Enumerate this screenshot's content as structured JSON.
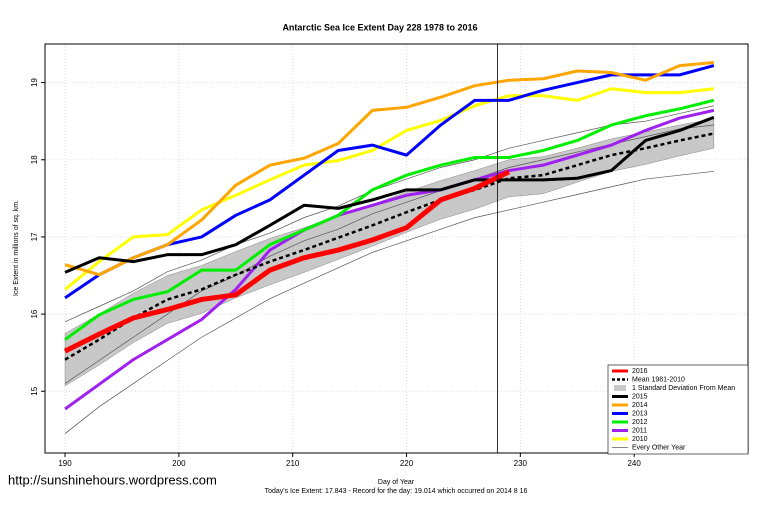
{
  "chart_data": {
    "type": "line",
    "title": "Antarctic Sea Ice Extent Day 228 1978 to 2016",
    "x_label": "Day of Year",
    "y_label": "Ice Extent in millions of sq. km.",
    "footer": "Today's Ice Extent: 17.843  - Record for the day: 19.014 which occurred on 2014 8 16",
    "watermark": "http://sunshinehours.wordpress.com",
    "x": [
      190,
      193,
      196,
      199,
      202,
      205,
      208,
      211,
      214,
      217,
      220,
      223,
      226,
      229,
      232,
      235,
      238,
      241,
      244,
      247
    ],
    "xlim": [
      188.24,
      250
    ],
    "xticks": [
      190,
      200,
      210,
      220,
      230,
      240
    ],
    "ylim": [
      14.2,
      19.5
    ],
    "yticks": [
      15,
      16,
      17,
      18,
      19
    ],
    "grid": true,
    "legend": "bottom-right",
    "vline": 228,
    "series": [
      {
        "name": "2016",
        "color": "#ff0000",
        "width": 5,
        "values": [
          15.52,
          15.74,
          15.95,
          16.06,
          16.19,
          16.25,
          16.57,
          16.73,
          16.83,
          16.96,
          17.12,
          17.48,
          17.63,
          17.843,
          null,
          null,
          null,
          null,
          null,
          null
        ]
      },
      {
        "name": "Mean 1981-2010",
        "color": "#000000",
        "width": 2.5,
        "dash": true,
        "values": [
          15.41,
          15.67,
          15.95,
          16.19,
          16.32,
          16.51,
          16.68,
          16.83,
          16.99,
          17.15,
          17.32,
          17.48,
          17.61,
          17.76,
          17.8,
          17.93,
          18.06,
          18.15,
          18.25,
          18.34
        ]
      },
      {
        "name": "2015",
        "color": "#000000",
        "width": 3,
        "values": [
          16.54,
          16.73,
          16.68,
          16.77,
          16.77,
          16.9,
          17.15,
          17.41,
          17.37,
          17.48,
          17.61,
          17.61,
          17.74,
          17.74,
          17.74,
          17.76,
          17.86,
          18.25,
          18.38,
          18.55
        ]
      },
      {
        "name": "2014",
        "color": "#ffa500",
        "width": 3,
        "values": [
          16.64,
          16.51,
          16.73,
          16.9,
          17.22,
          17.67,
          17.93,
          18.02,
          18.21,
          18.64,
          18.68,
          18.81,
          18.96,
          19.03,
          19.05,
          19.15,
          19.13,
          19.03,
          19.22,
          19.26
        ]
      },
      {
        "name": "2013",
        "color": "#0000ff",
        "width": 3,
        "values": [
          16.21,
          16.51,
          16.73,
          16.9,
          17.0,
          17.28,
          17.48,
          17.8,
          18.12,
          18.19,
          18.06,
          18.45,
          18.77,
          18.77,
          18.9,
          19.0,
          19.1,
          19.1,
          19.1,
          19.22
        ]
      },
      {
        "name": "2012",
        "color": "#00ee00",
        "width": 3,
        "values": [
          15.67,
          15.99,
          16.19,
          16.29,
          16.57,
          16.57,
          16.9,
          17.09,
          17.28,
          17.61,
          17.8,
          17.93,
          18.03,
          18.03,
          18.12,
          18.25,
          18.45,
          18.57,
          18.66,
          18.77
        ]
      },
      {
        "name": "2011",
        "color": "#a020f0",
        "width": 3,
        "values": [
          14.77,
          15.09,
          15.41,
          15.67,
          15.93,
          16.32,
          16.83,
          17.09,
          17.28,
          17.41,
          17.54,
          17.61,
          17.74,
          17.86,
          17.93,
          18.06,
          18.19,
          18.38,
          18.54,
          18.64
        ]
      },
      {
        "name": "2010",
        "color": "#ffff00",
        "width": 3,
        "values": [
          16.32,
          16.68,
          17.0,
          17.03,
          17.35,
          17.54,
          17.74,
          17.93,
          17.99,
          18.12,
          18.38,
          18.51,
          18.7,
          18.83,
          18.83,
          18.77,
          18.92,
          18.87,
          18.87,
          18.92
        ]
      }
    ],
    "band": {
      "name": "1 Standard Deviation From Mean",
      "color": "#c8c8c8",
      "upper": [
        15.75,
        16.0,
        16.27,
        16.5,
        16.63,
        16.81,
        16.98,
        17.12,
        17.27,
        17.42,
        17.58,
        17.73,
        17.86,
        18.0,
        18.04,
        18.15,
        18.27,
        18.36,
        18.45,
        18.53
      ],
      "lower": [
        15.07,
        15.34,
        15.63,
        15.88,
        16.01,
        16.21,
        16.38,
        16.54,
        16.71,
        16.88,
        17.06,
        17.23,
        17.36,
        17.52,
        17.56,
        17.71,
        17.85,
        17.94,
        18.05,
        18.15
      ]
    },
    "other_years": {
      "name": "Every Other Year",
      "color": "#555555",
      "series": [
        [
          14.45,
          14.8,
          15.1,
          15.4,
          15.7,
          15.95,
          16.2,
          16.4,
          16.6,
          16.8,
          16.95,
          17.1,
          17.25,
          17.35,
          17.45,
          17.55,
          17.65,
          17.75,
          17.8,
          17.85
        ],
        [
          15.1,
          15.4,
          15.7,
          16.0,
          16.3,
          16.5,
          16.75,
          16.95,
          17.1,
          17.3,
          17.45,
          17.6,
          17.75,
          17.9,
          18.0,
          18.1,
          18.2,
          18.3,
          18.4,
          18.45
        ],
        [
          15.9,
          16.1,
          16.3,
          16.55,
          16.7,
          16.9,
          17.05,
          17.25,
          17.4,
          17.6,
          17.75,
          17.9,
          18.0,
          18.15,
          18.25,
          18.35,
          18.45,
          18.5,
          18.6,
          18.7
        ]
      ]
    }
  }
}
